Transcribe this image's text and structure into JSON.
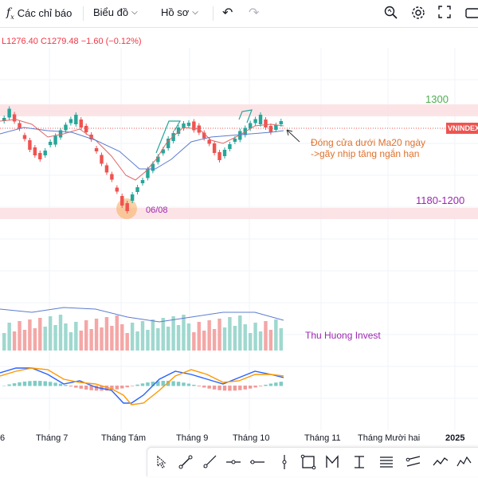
{
  "toolbar": {
    "indicators_label": "Các chỉ báo",
    "chart_type_label": "Biểu đồ",
    "profile_label": "Hồ sơ"
  },
  "ohlc": {
    "low": "L1276.40",
    "close": "C1279.48",
    "change": "−1.60 (−0.12%)"
  },
  "price_tag": "VNINDEX",
  "annotations": {
    "level_high": "1300",
    "level_low": "1180-1200",
    "date_label": "06/08",
    "note_line1": "Đóng cửa dưới Ma20 ngày",
    "note_line2": "->gãy nhịp tăng ngắn hạn",
    "watermark": "Thu Huong Invest"
  },
  "x_axis": {
    "labels": [
      "6",
      "Tháng 7",
      "Tháng Tám",
      "Tháng 9",
      "Tháng 10",
      "Tháng 11",
      "Tháng Mười hai",
      "2025"
    ]
  },
  "colors": {
    "up": "#26a69a",
    "down": "#ef5350",
    "zone": "#fbdde0",
    "note": "#e0712c",
    "level_green": "#4caf50",
    "level_purple": "#9c27b0"
  },
  "drawing_tools": [
    "cursor-tool-icon",
    "trend-line-icon",
    "ray-icon",
    "horizontal-ray-icon",
    "horizontal-line-icon",
    "vertical-line-icon",
    "rectangle-icon",
    "path-icon",
    "bars-pattern-icon",
    "fib-retracement-icon",
    "pitchfork-icon",
    "channel-icon",
    "forecast-icon",
    "elliott-wave-icon"
  ]
}
